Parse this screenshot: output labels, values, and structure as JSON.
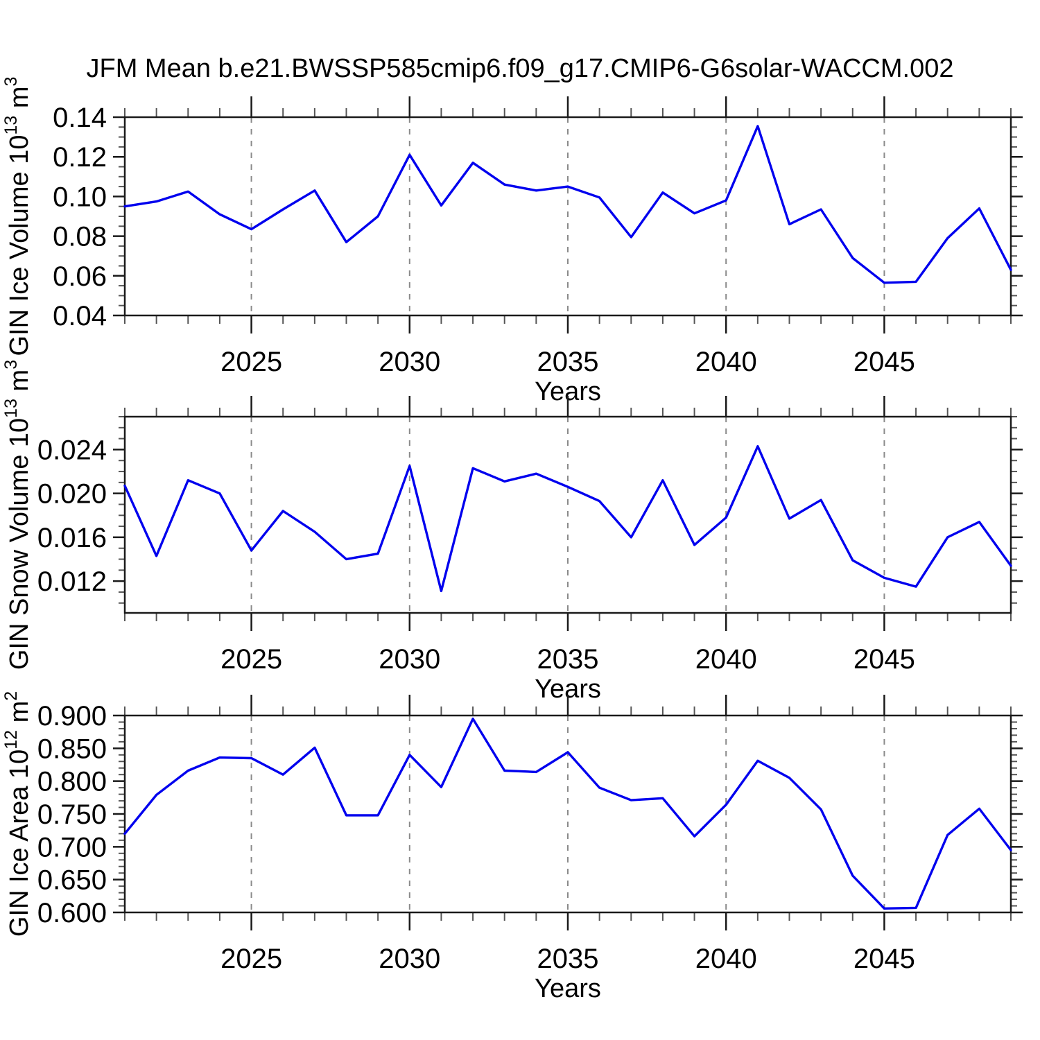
{
  "title": "JFM Mean b.e21.BWSSP585cmip6.f09_g17.CMIP6-G6solar-WACCM.002",
  "background_color": "#ffffff",
  "line_color": "#0000EE",
  "grid_color": "#8a8a8a",
  "axis_color": "#1a1a1a",
  "chart_data": [
    {
      "type": "line",
      "name": "gin-ice-volume",
      "ylabel": "GIN Ice Volume 10^13 m^3",
      "ylabel_parts": [
        {
          "t": "GIN Ice Volume 10"
        },
        {
          "t": "13",
          "sup": true
        },
        {
          "t": " m"
        },
        {
          "t": "3",
          "sup": true
        }
      ],
      "xlabel": "Years",
      "x": [
        2021,
        2022,
        2023,
        2024,
        2025,
        2026,
        2027,
        2028,
        2029,
        2030,
        2031,
        2032,
        2033,
        2034,
        2035,
        2036,
        2037,
        2038,
        2039,
        2040,
        2041,
        2042,
        2043,
        2044,
        2045,
        2046,
        2047,
        2048,
        2049
      ],
      "y": [
        0.095,
        0.0975,
        0.1025,
        0.091,
        0.0835,
        0.0935,
        0.103,
        0.077,
        0.09,
        0.121,
        0.0955,
        0.117,
        0.106,
        0.103,
        0.105,
        0.0995,
        0.0795,
        0.102,
        0.0915,
        0.098,
        0.1355,
        0.086,
        0.0935,
        0.069,
        0.0565,
        0.057,
        0.079,
        0.094,
        0.063
      ],
      "xlim": [
        2021,
        2049
      ],
      "ylim": [
        0.04,
        0.14
      ],
      "yticks": [
        0.04,
        0.06,
        0.08,
        0.1,
        0.12,
        0.14
      ],
      "ytick_labels": [
        "0.04",
        "0.06",
        "0.08",
        "0.10",
        "0.12",
        "0.14"
      ],
      "yminor_step": 0.005,
      "xticks": [
        2025,
        2030,
        2035,
        2040,
        2045
      ],
      "xtick_labels": [
        "2025",
        "2030",
        "2035",
        "2040",
        "2045"
      ],
      "xminor_step": 1,
      "grid": "vertical-dashed",
      "legend": "none",
      "line_color": "#0000EE"
    },
    {
      "type": "line",
      "name": "gin-snow-volume",
      "ylabel": "GIN Snow Volume 10^13 m^3",
      "ylabel_parts": [
        {
          "t": "GIN Snow Volume 10"
        },
        {
          "t": "13",
          "sup": true
        },
        {
          "t": " m"
        },
        {
          "t": "3",
          "sup": true
        }
      ],
      "xlabel": "Years",
      "x": [
        2021,
        2022,
        2023,
        2024,
        2025,
        2026,
        2027,
        2028,
        2029,
        2030,
        2031,
        2032,
        2033,
        2034,
        2035,
        2036,
        2037,
        2038,
        2039,
        2040,
        2041,
        2042,
        2043,
        2044,
        2045,
        2046,
        2047,
        2048,
        2049
      ],
      "y": [
        0.0207,
        0.0143,
        0.0212,
        0.02,
        0.0148,
        0.0184,
        0.0165,
        0.014,
        0.0145,
        0.0225,
        0.0111,
        0.0223,
        0.0211,
        0.0218,
        0.0206,
        0.0193,
        0.016,
        0.0212,
        0.0153,
        0.0178,
        0.0243,
        0.0177,
        0.0194,
        0.0139,
        0.0123,
        0.0115,
        0.016,
        0.0174,
        0.0134
      ],
      "xlim": [
        2021,
        2049
      ],
      "ylim": [
        0.0091,
        0.027
      ],
      "yticks": [
        0.012,
        0.016,
        0.02,
        0.024
      ],
      "ytick_labels": [
        "0.012",
        "0.016",
        "0.020",
        "0.024"
      ],
      "yminor_step": 0.001,
      "xticks": [
        2025,
        2030,
        2035,
        2040,
        2045
      ],
      "xtick_labels": [
        "2025",
        "2030",
        "2035",
        "2040",
        "2045"
      ],
      "xminor_step": 1,
      "grid": "vertical-dashed",
      "legend": "none",
      "line_color": "#0000EE"
    },
    {
      "type": "line",
      "name": "gin-ice-area",
      "ylabel": "GIN Ice Area 10^12 m^2",
      "ylabel_parts": [
        {
          "t": "GIN Ice Area 10"
        },
        {
          "t": "12",
          "sup": true
        },
        {
          "t": " m"
        },
        {
          "t": "2",
          "sup": true
        }
      ],
      "xlabel": "Years",
      "x": [
        2021,
        2022,
        2023,
        2024,
        2025,
        2026,
        2027,
        2028,
        2029,
        2030,
        2031,
        2032,
        2033,
        2034,
        2035,
        2036,
        2037,
        2038,
        2039,
        2040,
        2041,
        2042,
        2043,
        2044,
        2045,
        2046,
        2047,
        2048,
        2049
      ],
      "y": [
        0.72,
        0.779,
        0.816,
        0.836,
        0.835,
        0.81,
        0.851,
        0.748,
        0.748,
        0.84,
        0.791,
        0.895,
        0.816,
        0.814,
        0.844,
        0.79,
        0.771,
        0.774,
        0.716,
        0.764,
        0.831,
        0.805,
        0.757,
        0.656,
        0.606,
        0.607,
        0.718,
        0.758,
        0.695
      ],
      "xlim": [
        2021,
        2049
      ],
      "ylim": [
        0.6,
        0.9
      ],
      "yticks": [
        0.6,
        0.65,
        0.7,
        0.75,
        0.8,
        0.85,
        0.9
      ],
      "ytick_labels": [
        "0.600",
        "0.650",
        "0.700",
        "0.750",
        "0.800",
        "0.850",
        "0.900"
      ],
      "yminor_step": 0.01,
      "xticks": [
        2025,
        2030,
        2035,
        2040,
        2045
      ],
      "xtick_labels": [
        "2025",
        "2030",
        "2035",
        "2040",
        "2045"
      ],
      "xminor_step": 1,
      "grid": "vertical-dashed",
      "legend": "none",
      "line_color": "#0000EE"
    }
  ]
}
